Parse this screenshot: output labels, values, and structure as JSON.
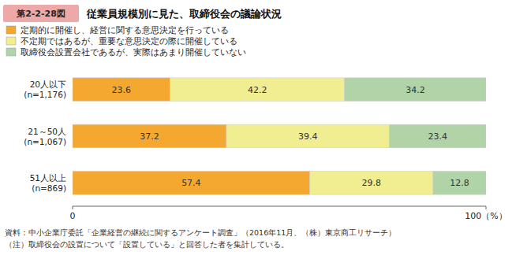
{
  "chart_data": {
    "type": "bar",
    "orientation": "horizontal",
    "stacked": true,
    "data_labels": true,
    "title": "従業員規模別に見た、取締役会の議論状況",
    "annotations": [
      {
        "text": "第2-2-28図",
        "color": "#EDA8A8"
      },
      {
        "text": "資料：中小企業庁委託「企業経営の継続に関するアンケート調査」（2016年11月、（株）東京商工リサーチ）"
      },
      {
        "text": "（注）取締役会の設置について「設置している」と回答した者を集計している。"
      }
    ],
    "categories": [
      "20人以下\n(n=1,176)",
      "21～50人\n(n=1,067)",
      "51人以上\n(n=869)"
    ],
    "series": [
      {
        "name": "定期的に開催し、経営に関する意思決定を行っている",
        "color": "#F5A830",
        "values": [
          23.6,
          37.2,
          57.4
        ]
      },
      {
        "name": "不定期ではあるが、重要な意思決定の際に開催している",
        "color": "#F0EE90",
        "values": [
          42.2,
          39.4,
          29.8
        ]
      },
      {
        "name": "取締役会設置会社であるが、実際はあまり開催していない",
        "color": "#B0D4A8",
        "values": [
          34.2,
          23.4,
          12.8
        ]
      }
    ],
    "xlim": [
      0,
      100
    ],
    "xticks": [
      0,
      {
        "value": 100,
        "label": "100（%）"
      }
    ],
    "grid": false,
    "legend": "top"
  }
}
